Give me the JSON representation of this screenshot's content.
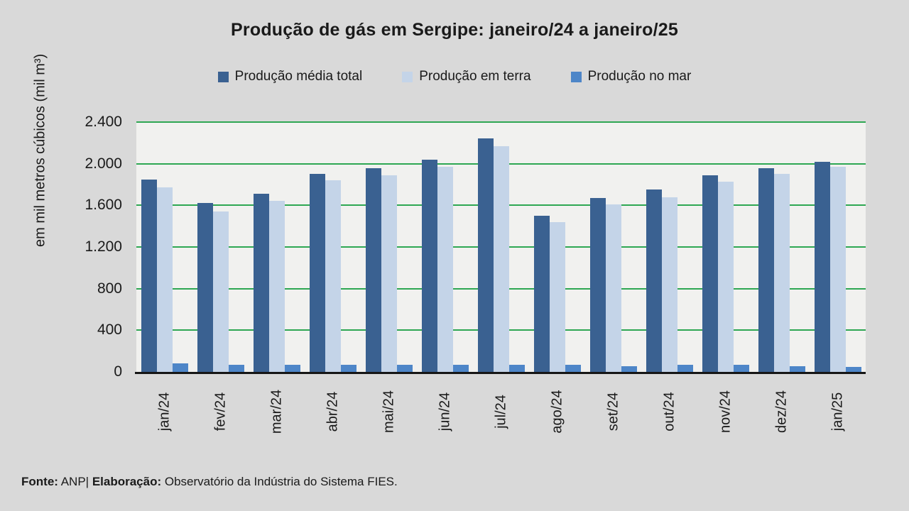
{
  "title": "Produção de gás em Sergipe: janeiro/24 a janeiro/25",
  "legend": [
    {
      "label": "Produção média total",
      "color": "#3A6191"
    },
    {
      "label": "Produção em terra",
      "color": "#C4D4E8"
    },
    {
      "label": "Produção no mar",
      "color": "#4E86C8"
    }
  ],
  "footer": {
    "source_label": "Fonte:",
    "source_value": " ANP| ",
    "elaboration_label": "Elaboração:",
    "elaboration_value": " Observatório da Indústria do Sistema FIES."
  },
  "colors": {
    "background": "#D9D9D9",
    "plot_background": "#F1F1EF",
    "gridline": "#2EA753",
    "axis_line": "#161616",
    "text": "#1a1a1a"
  },
  "chart_data": {
    "type": "bar",
    "title": "Produção de gás em Sergipe: janeiro/24 a janeiro/25",
    "xlabel": "",
    "ylabel": "em mil metros cúbicos (mil m³)",
    "ylim": [
      0,
      2400
    ],
    "ytick_step": 400,
    "ytick_labels": [
      "0",
      "400",
      "800",
      "1.200",
      "1.600",
      "2.000",
      "2.400"
    ],
    "grid": true,
    "legend_position": "top",
    "categories": [
      "jan/24",
      "fev/24",
      "mar/24",
      "abr/24",
      "mai/24",
      "jun/24",
      "jul/24",
      "ago/24",
      "set/24",
      "out/24",
      "nov/24",
      "dez/24",
      "jan/25"
    ],
    "series": [
      {
        "name": "Produção média total",
        "color": "#3A6191",
        "values": [
          1850,
          1620,
          1710,
          1900,
          1960,
          2040,
          2240,
          1500,
          1670,
          1750,
          1890,
          1960,
          2020
        ]
      },
      {
        "name": "Produção em terra",
        "color": "#C4D4E8",
        "values": [
          1770,
          1540,
          1640,
          1840,
          1890,
          1970,
          2170,
          1440,
          1610,
          1680,
          1830,
          1900,
          1970
        ]
      },
      {
        "name": "Produção no mar",
        "color": "#4E86C8",
        "values": [
          80,
          70,
          70,
          70,
          70,
          65,
          70,
          70,
          55,
          70,
          65,
          55,
          50
        ]
      }
    ]
  }
}
